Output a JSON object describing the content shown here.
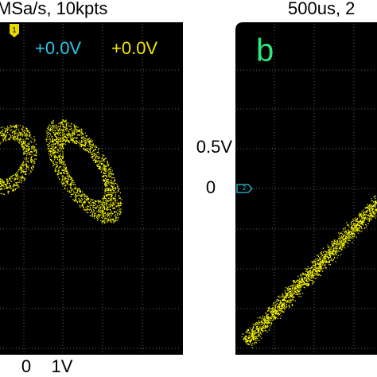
{
  "header": {
    "left": "MSa/s, 10kpts",
    "right": "500us, 2"
  },
  "left_panel": {
    "marker": "1",
    "readouts": [
      "+0.0V",
      "+0.0V"
    ],
    "x_labels": [
      "0",
      "1V"
    ]
  },
  "right_panel": {
    "label": "b",
    "marker": "2"
  },
  "y_labels": [
    "0.5V",
    "0"
  ]
}
